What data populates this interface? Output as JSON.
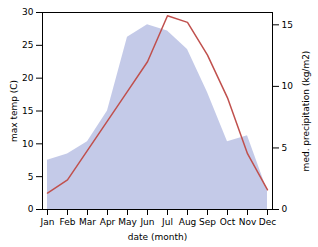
{
  "chart_data": {
    "type": "line",
    "categories": [
      "Jan",
      "Feb",
      "Mar",
      "Apr",
      "May",
      "Jun",
      "Jul",
      "Aug",
      "Sep",
      "Oct",
      "Nov",
      "Dec"
    ],
    "series": [
      {
        "type": "area",
        "axis": "y2",
        "color": "#b0b8e0",
        "values": [
          4.0,
          4.5,
          5.5,
          8.0,
          14.0,
          15.0,
          14.5,
          13.0,
          9.5,
          5.5,
          6.0,
          1.5
        ]
      },
      {
        "type": "line",
        "color": "#c0504d",
        "values": [
          2.5,
          4.5,
          9.0,
          13.5,
          18.0,
          22.5,
          29.5,
          28.5,
          23.5,
          17.0,
          8.5,
          3.0
        ]
      }
    ],
    "xlabel": "date (month)",
    "ylabel": "max temp (C)",
    "y2label": "med. precipitation (kg/m2)",
    "ylim": [
      0,
      30
    ],
    "yticks": [
      0,
      5,
      10,
      15,
      20,
      25,
      30
    ],
    "y2lim": [
      0,
      16
    ],
    "y2ticks": [
      0,
      5,
      10,
      15
    ]
  }
}
